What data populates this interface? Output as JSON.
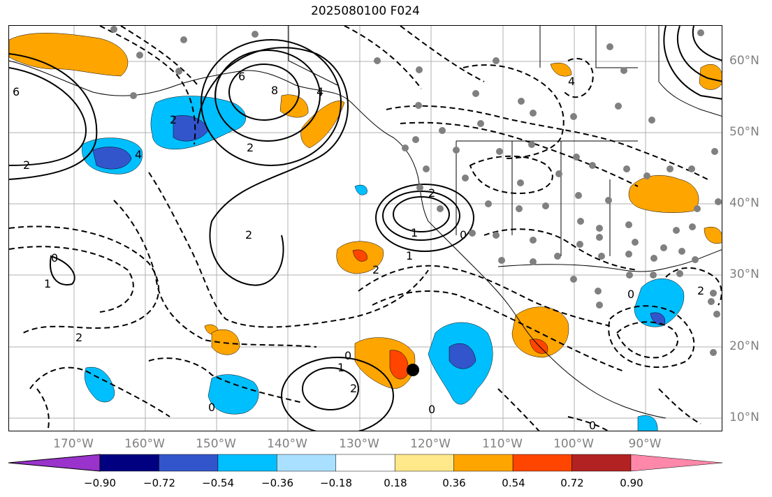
{
  "title": "2025080100 F024",
  "lon_labels": [
    "170°W",
    "160°W",
    "150°W",
    "140°W",
    "130°W",
    "120°W",
    "110°W",
    "100°W",
    "90°W"
  ],
  "lat_labels": [
    "60°N",
    "50°N",
    "40°N",
    "30°N",
    "20°N",
    "10°N"
  ],
  "colorbar": {
    "ticks": [
      "−0.90",
      "−0.72",
      "−0.54",
      "−0.36",
      "−0.18",
      "0.18",
      "0.36",
      "0.54",
      "0.72",
      "0.90"
    ],
    "colors": [
      "#9933cc",
      "#000080",
      "#3355cc",
      "#00bfff",
      "#aae0ff",
      "#ffffff",
      "#ffe88a",
      "#ffa500",
      "#ff4500",
      "#b22222",
      "#ff88aa"
    ]
  },
  "contour_labels": [
    "2",
    "6",
    "8",
    "4",
    "2",
    "2",
    "0",
    "2",
    "1",
    "0",
    "2",
    "0",
    "1",
    "2",
    "0",
    "1",
    "0",
    "0",
    "2",
    "2",
    "4",
    "2",
    "1",
    "0",
    "6",
    "4"
  ],
  "colors": {
    "grid": "#b0b0b0",
    "label": "#808080",
    "station": "#808080"
  }
}
